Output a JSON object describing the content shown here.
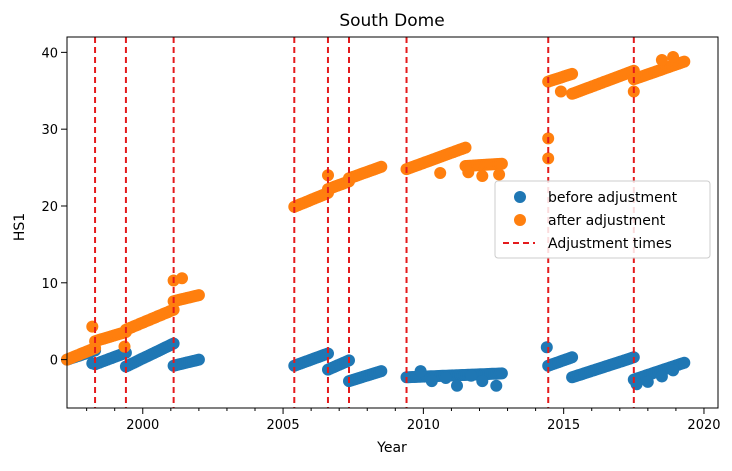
{
  "chart_data": {
    "type": "scatter",
    "title": "South Dome",
    "xlabel": "Year",
    "ylabel": "HS1",
    "xlim": [
      1997.3,
      2020.5
    ],
    "ylim": [
      -6.3,
      42
    ],
    "grid": false,
    "legend_position": "right",
    "x_ticks": [
      2000,
      2005,
      2010,
      2015,
      2020
    ],
    "x_tick_labels": [
      "2000",
      "2005",
      "2010",
      "2015",
      "2020"
    ],
    "y_ticks": [
      0,
      10,
      20,
      30,
      40
    ],
    "y_tick_labels": [
      "0",
      "10",
      "20",
      "30",
      "40"
    ],
    "colors": {
      "before": "#1f77b4",
      "after": "#ff7f0e",
      "adjust": "#e41a1c"
    },
    "legend": {
      "before_label": "before adjustment",
      "after_label": "after adjustment",
      "adjust_label": "Adjustment times"
    },
    "adjustment_times": [
      1998.3,
      1999.4,
      2001.1,
      2005.4,
      2006.6,
      2007.35,
      2009.4,
      2014.45,
      2017.5
    ],
    "series": [
      {
        "name": "before adjustment",
        "segments": [
          {
            "x0": 1997.3,
            "x1": 1998.3,
            "y0": 0.0,
            "y1": 1.2
          },
          {
            "x0": 1998.3,
            "x1": 1999.4,
            "y0": -0.6,
            "y1": 0.9
          },
          {
            "x0": 1999.4,
            "x1": 2001.1,
            "y0": -0.9,
            "y1": 2.1
          },
          {
            "x0": 2001.1,
            "x1": 2002.0,
            "y0": -0.8,
            "y1": 0.0
          },
          {
            "x0": 2005.4,
            "x1": 2006.6,
            "y0": -0.8,
            "y1": 0.8
          },
          {
            "x0": 2006.6,
            "x1": 2007.35,
            "y0": -1.3,
            "y1": -0.1
          },
          {
            "x0": 2007.35,
            "x1": 2008.5,
            "y0": -2.8,
            "y1": -1.5
          },
          {
            "x0": 2009.4,
            "x1": 2012.8,
            "y0": -2.3,
            "y1": -1.8
          },
          {
            "x0": 2014.45,
            "x1": 2015.3,
            "y0": -0.8,
            "y1": 0.3
          },
          {
            "x0": 2015.3,
            "x1": 2017.5,
            "y0": -2.3,
            "y1": 0.3
          },
          {
            "x0": 2017.5,
            "x1": 2019.3,
            "y0": -2.6,
            "y1": -0.4
          }
        ],
        "extra_points": [
          [
            1998.2,
            -0.5
          ],
          [
            2009.9,
            -1.5
          ],
          [
            2010.3,
            -2.8
          ],
          [
            2010.8,
            -2.4
          ],
          [
            2011.2,
            -3.4
          ],
          [
            2011.7,
            -2.1
          ],
          [
            2012.1,
            -2.8
          ],
          [
            2012.6,
            -3.4
          ],
          [
            2014.4,
            1.6
          ],
          [
            2017.6,
            -3.2
          ],
          [
            2018.0,
            -2.9
          ],
          [
            2018.5,
            -2.2
          ],
          [
            2018.9,
            -1.4
          ]
        ]
      },
      {
        "name": "after adjustment",
        "segments": [
          {
            "x0": 1997.3,
            "x1": 1998.3,
            "y0": 0.0,
            "y1": 1.5
          },
          {
            "x0": 1998.3,
            "x1": 1999.4,
            "y0": 2.4,
            "y1": 3.6
          },
          {
            "x0": 1999.4,
            "x1": 2001.1,
            "y0": 3.9,
            "y1": 6.5
          },
          {
            "x0": 2001.1,
            "x1": 2002.0,
            "y0": 7.6,
            "y1": 8.4
          },
          {
            "x0": 2005.4,
            "x1": 2006.6,
            "y0": 19.9,
            "y1": 21.7
          },
          {
            "x0": 2006.6,
            "x1": 2007.35,
            "y0": 22.2,
            "y1": 23.2
          },
          {
            "x0": 2007.35,
            "x1": 2008.5,
            "y0": 23.6,
            "y1": 25.1
          },
          {
            "x0": 2009.4,
            "x1": 2011.5,
            "y0": 24.8,
            "y1": 27.6
          },
          {
            "x0": 2011.5,
            "x1": 2012.8,
            "y0": 25.2,
            "y1": 25.5
          },
          {
            "x0": 2014.45,
            "x1": 2015.3,
            "y0": 36.2,
            "y1": 37.2
          },
          {
            "x0": 2015.3,
            "x1": 2017.5,
            "y0": 34.6,
            "y1": 37.6
          },
          {
            "x0": 2017.5,
            "x1": 2019.3,
            "y0": 36.5,
            "y1": 38.8
          }
        ],
        "extra_points": [
          [
            1998.2,
            4.3
          ],
          [
            1999.35,
            1.7
          ],
          [
            2001.1,
            10.3
          ],
          [
            2001.4,
            10.6
          ],
          [
            2006.6,
            24.0
          ],
          [
            2010.6,
            24.3
          ],
          [
            2011.6,
            24.4
          ],
          [
            2012.1,
            23.9
          ],
          [
            2012.7,
            24.1
          ],
          [
            2014.45,
            26.2
          ],
          [
            2014.45,
            28.8
          ],
          [
            2014.9,
            34.9
          ],
          [
            2017.5,
            34.9
          ],
          [
            2018.5,
            39.0
          ],
          [
            2018.9,
            39.4
          ]
        ]
      }
    ]
  }
}
